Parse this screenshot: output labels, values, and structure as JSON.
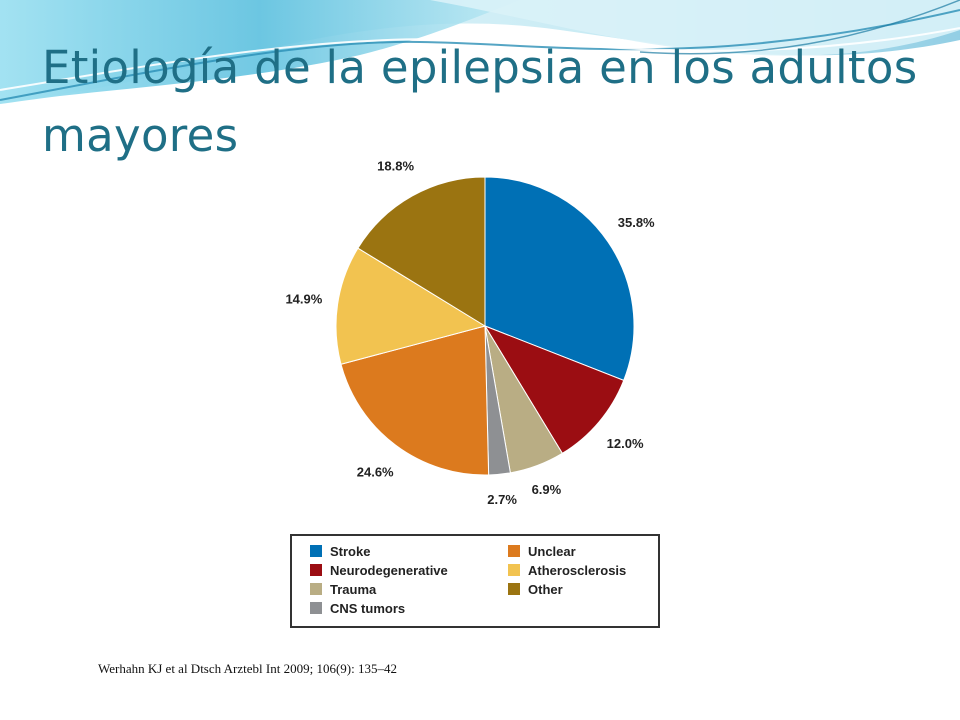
{
  "slide": {
    "title": "Etiología de la epilepsia en los adultos mayores",
    "citation": "Werhahn KJ et al Dtsch Arztebl Int 2009; 106(9): 135–42",
    "theme_colors": {
      "title": "#1f6f86",
      "wave_dark": "#2a8fb5",
      "wave_light": "#7fd3e8"
    }
  },
  "chart_data": {
    "type": "pie",
    "title": "",
    "start_angle_deg": 0,
    "direction": "clockwise",
    "legend_placement": "bottom",
    "slices": [
      {
        "name": "Stroke",
        "value": 35.8,
        "label": "35.8%",
        "color": "#0070b5"
      },
      {
        "name": "Neurodegenerative",
        "value": 12.0,
        "label": "12.0%",
        "color": "#9b0d12"
      },
      {
        "name": "Trauma",
        "value": 6.9,
        "label": "6.9%",
        "color": "#b9ad84"
      },
      {
        "name": "CNS tumors",
        "value": 2.7,
        "label": "2.7%",
        "color": "#8e9093"
      },
      {
        "name": "Unclear",
        "value": 24.6,
        "label": "24.6%",
        "color": "#dc7a1e"
      },
      {
        "name": "Atherosclerosis",
        "value": 14.9,
        "label": "14.9%",
        "color": "#f2c350"
      },
      {
        "name": "Other",
        "value": 18.8,
        "label": "18.8%",
        "color": "#9b7411"
      }
    ],
    "legend": [
      {
        "name": "Stroke",
        "color": "#0070b5"
      },
      {
        "name": "Neurodegenerative",
        "color": "#9b0d12"
      },
      {
        "name": "Trauma",
        "color": "#b9ad84"
      },
      {
        "name": "CNS tumors",
        "color": "#8e9093"
      },
      {
        "name": "Unclear",
        "color": "#dc7a1e"
      },
      {
        "name": "Atherosclerosis",
        "color": "#f2c350"
      },
      {
        "name": "Other",
        "color": "#9b7411"
      }
    ]
  }
}
